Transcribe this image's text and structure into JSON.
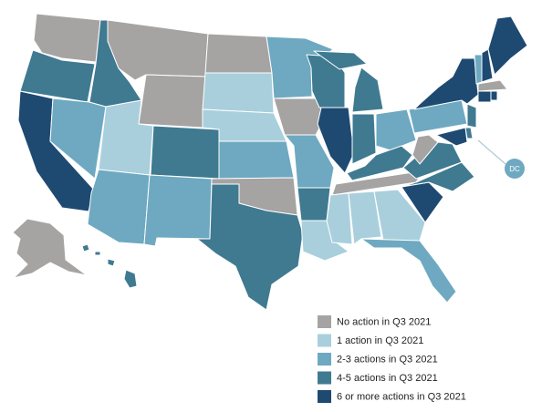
{
  "legend": [
    {
      "label": "No action in Q3 2021",
      "color": "#a6a3a3"
    },
    {
      "label": "1 action in Q3 2021",
      "color": "#a9cfdd"
    },
    {
      "label": "2-3 actions in Q3 2021",
      "color": "#6ea9c1"
    },
    {
      "label": "4-5 actions in Q3 2021",
      "color": "#3f7a91"
    },
    {
      "label": "6 or more actions in Q3 2021",
      "color": "#1e4a72"
    }
  ],
  "dc_label": "DC"
}
